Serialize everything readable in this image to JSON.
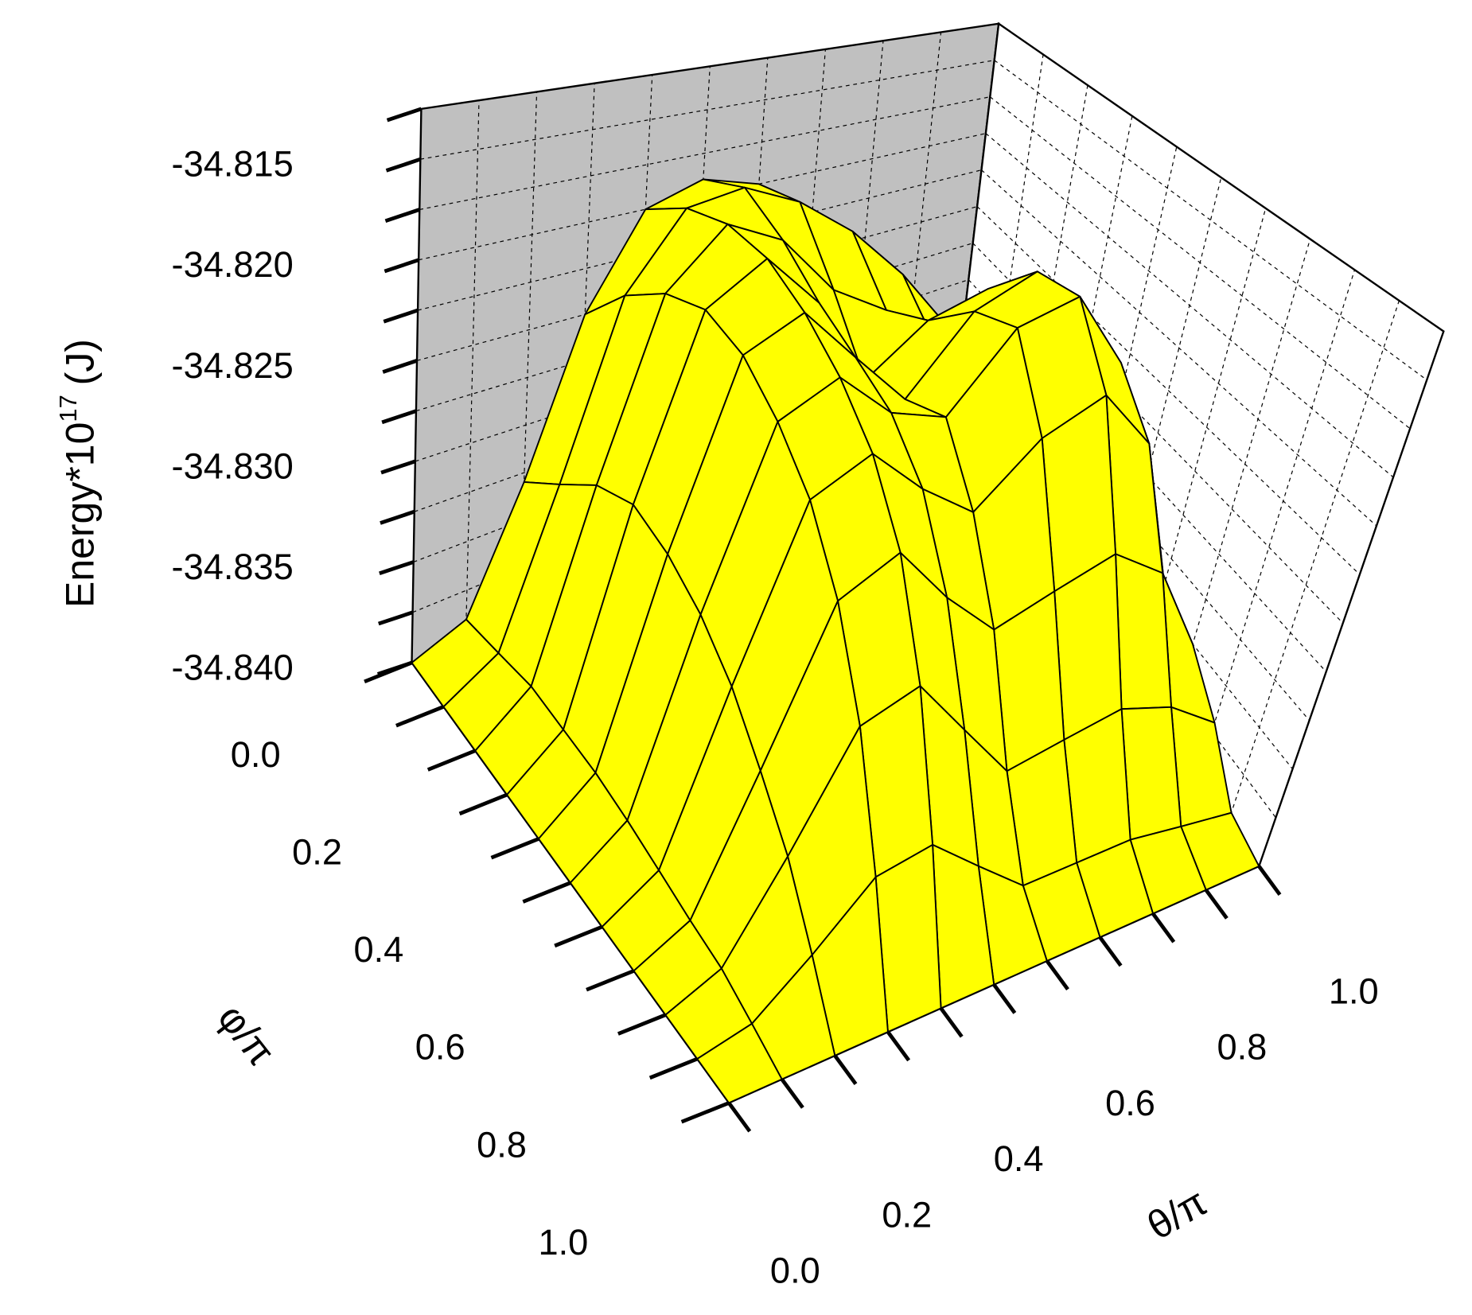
{
  "chart_data": {
    "type": "surface",
    "z_label": [
      "Energy*10",
      "17",
      "(J)"
    ],
    "y_label": "φ/π",
    "x_label": "θ/π",
    "x": [
      0,
      0.1,
      0.2,
      0.3,
      0.4,
      0.5,
      0.6,
      0.7,
      0.8,
      0.9,
      1
    ],
    "y": [
      0,
      0.1,
      0.2,
      0.3,
      0.4,
      0.5,
      0.6,
      0.7,
      0.8,
      0.9,
      1
    ],
    "z": [
      [
        -34.84,
        -34.839,
        -34.833,
        -34.825,
        -34.82,
        -34.819,
        -34.82,
        -34.823,
        -34.826,
        -34.83,
        -34.835
      ],
      [
        -34.84,
        -34.8385,
        -34.831,
        -34.822,
        -34.818,
        -34.8175,
        -34.819,
        -34.8215,
        -34.825,
        -34.8295,
        -34.835
      ],
      [
        -34.84,
        -34.838,
        -34.829,
        -34.82,
        -34.817,
        -34.8185,
        -34.822,
        -34.824,
        -34.827,
        -34.831,
        -34.836
      ],
      [
        -34.84,
        -34.838,
        -34.828,
        -34.819,
        -34.817,
        -34.82,
        -34.825,
        -34.8225,
        -34.8215,
        -34.826,
        -34.834
      ],
      [
        -34.84,
        -34.838,
        -34.8285,
        -34.8195,
        -34.818,
        -34.821,
        -34.824,
        -34.82,
        -34.8185,
        -34.823,
        -34.833
      ],
      [
        -34.84,
        -34.8382,
        -34.8295,
        -34.821,
        -34.8195,
        -34.822,
        -34.823,
        -34.819,
        -34.818,
        -34.8225,
        -34.833
      ],
      [
        -34.84,
        -34.8385,
        -34.831,
        -34.823,
        -34.8215,
        -34.824,
        -34.826,
        -34.823,
        -34.8215,
        -34.825,
        -34.834
      ],
      [
        -34.84,
        -34.8388,
        -34.833,
        -34.826,
        -34.8245,
        -34.8275,
        -34.83,
        -34.829,
        -34.828,
        -34.83,
        -34.835
      ],
      [
        -34.84,
        -34.839,
        -34.835,
        -34.83,
        -34.829,
        -34.832,
        -34.835,
        -34.8345,
        -34.834,
        -34.835,
        -34.837
      ],
      [
        -34.84,
        -34.8395,
        -34.8375,
        -34.835,
        -34.8345,
        -34.8365,
        -34.8385,
        -34.8385,
        -34.8385,
        -34.839,
        -34.8395
      ],
      [
        -34.84,
        -34.84,
        -34.84,
        -34.84,
        -34.84,
        -34.84,
        -34.84,
        -34.84,
        -34.84,
        -34.84,
        -34.84
      ]
    ],
    "xlim": [
      0,
      1
    ],
    "ylim": [
      0,
      1
    ],
    "zlim": [
      -34.84,
      -34.8125
    ],
    "xticks": [
      {
        "value": 0,
        "label": "0.0"
      },
      0.2,
      0.4,
      0.6,
      0.8,
      {
        "value": 1,
        "label": "1.0"
      }
    ],
    "yticks": [
      {
        "value": 0,
        "label": "0.0"
      },
      0.2,
      0.4,
      0.6,
      0.8,
      {
        "value": 1,
        "label": "1.0"
      }
    ],
    "zticks": [
      {
        "value": -34.84,
        "label": "-34.840"
      },
      -34.835,
      {
        "value": -34.83,
        "label": "-34.830"
      },
      -34.825,
      {
        "value": -34.82,
        "label": "-34.820"
      },
      -34.815
    ],
    "xminorticks": [
      0.1,
      0.3,
      0.5,
      0.7,
      0.9
    ],
    "yminorticks": [
      0.1,
      0.3,
      0.5,
      0.7,
      0.9
    ],
    "zminorticks": [
      -34.8375,
      -34.8325,
      -34.8275,
      -34.8225,
      -34.8175,
      -34.8125
    ],
    "grid": true,
    "color": "#ffff00",
    "wall_left_color": "#c0c0c0",
    "wall_right_color": "#ffffff",
    "floor_color": "#808080"
  }
}
